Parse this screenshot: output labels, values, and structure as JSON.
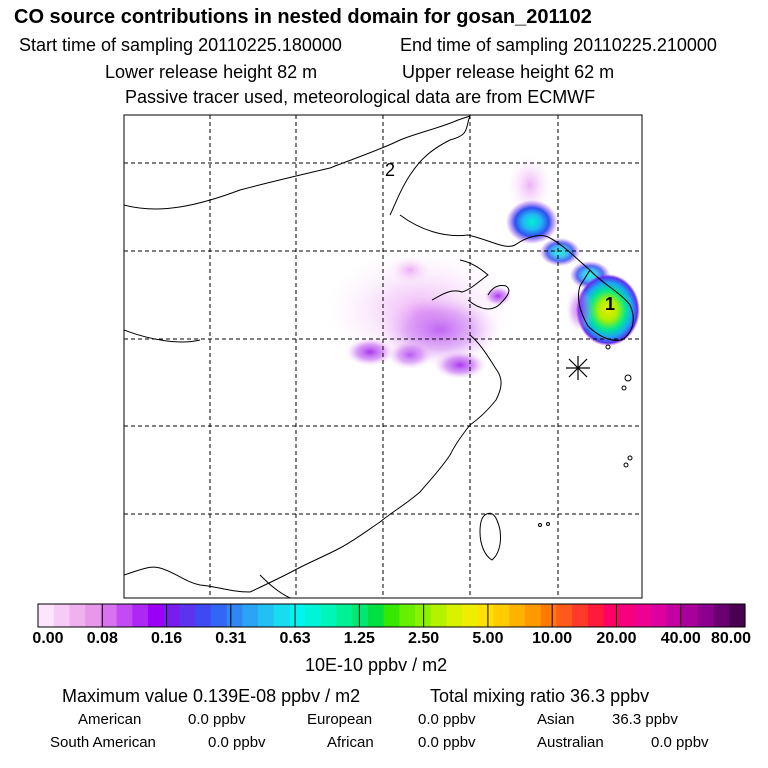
{
  "header": {
    "title": "CO  source contributions in nested domain for gosan_201102",
    "start_time": "Start time of sampling 20110225.180000",
    "end_time": "End time of sampling 20110225.210000",
    "lower_height": "Lower release height   82 m",
    "upper_height": "Upper release height   62 m",
    "passive": "Passive tracer used, meteorological data are from ECMWF"
  },
  "map": {
    "markers": [
      {
        "label": "1",
        "description": "receptor location (gosan)"
      },
      {
        "label": "2",
        "description": "secondary marker"
      }
    ],
    "release_symbol": "asterisk-icon"
  },
  "colorbar": {
    "ticks": [
      "0.00",
      "0.08",
      "0.16",
      "0.31",
      "0.63",
      "1.25",
      "2.50",
      "5.00",
      "10.00",
      "20.00",
      "40.00",
      "80.00"
    ],
    "colors": [
      "#fde6fd",
      "#f6ccf6",
      "#efb2ef",
      "#e898e8",
      "#d873f0",
      "#c24bf3",
      "#ad28f5",
      "#9a00f5",
      "#7a1cf0",
      "#5c33ee",
      "#3f49f3",
      "#3366f5",
      "#2f86f5",
      "#2aa4f6",
      "#22c1f5",
      "#18dcf0",
      "#00f5f0",
      "#00f5d6",
      "#00f5b8",
      "#00f096",
      "#00e870",
      "#00e040",
      "#35e800",
      "#66f000",
      "#8af200",
      "#b4f200",
      "#d8f200",
      "#f0ee00",
      "#ffe000",
      "#ffcc00",
      "#ffb300",
      "#ff9900",
      "#ff7a00",
      "#ff5a1a",
      "#ff3a2a",
      "#ff1a3a",
      "#ff0066",
      "#f7007e",
      "#ee0090",
      "#dd00a0",
      "#c400a0",
      "#a8009a",
      "#8d008d",
      "#6a0070",
      "#4a0050"
    ],
    "unit": "10E-10 ppbv / m2"
  },
  "stats": {
    "maximum": "Maximum value  0.139E-08 ppbv / m2",
    "total": "Total mixing ratio       36.3 ppbv"
  },
  "sources": {
    "american": {
      "label": "American",
      "value": "0.0 ppbv"
    },
    "european": {
      "label": "European",
      "value": "0.0 ppbv"
    },
    "asian": {
      "label": "Asian",
      "value": "36.3 ppbv"
    },
    "south_american": {
      "label": "South American",
      "value": "0.0 ppbv"
    },
    "african": {
      "label": "African",
      "value": "0.0 ppbv"
    },
    "australian": {
      "label": "Australian",
      "value": "0.0 ppbv"
    }
  }
}
